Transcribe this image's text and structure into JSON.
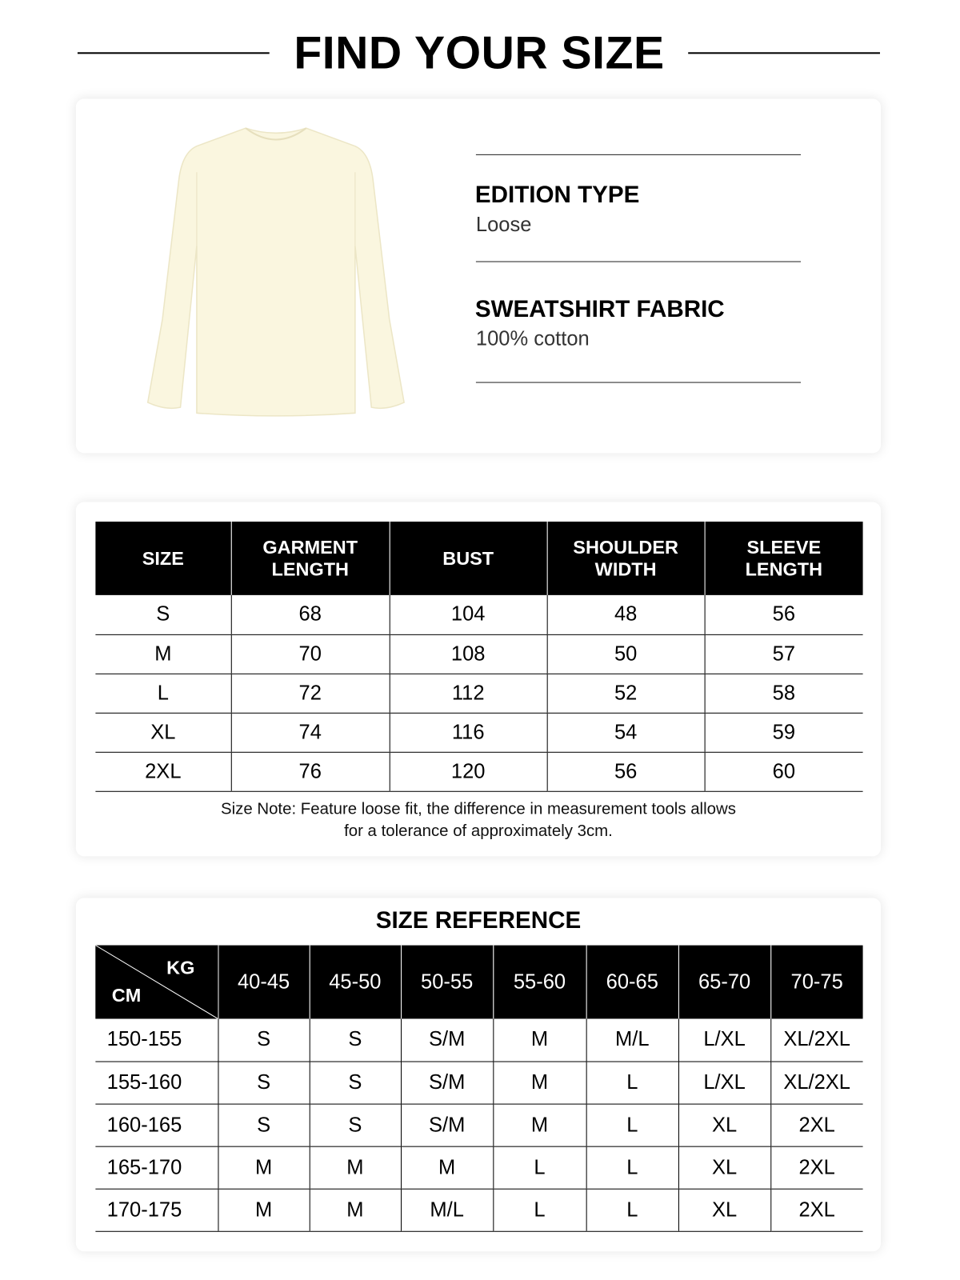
{
  "header": {
    "title": "FIND YOUR SIZE"
  },
  "product": {
    "image": "cream-long-sleeve-sweatshirt",
    "color": "#faf6df",
    "specs": [
      {
        "label": "EDITION TYPE",
        "value": "Loose"
      },
      {
        "label": "SWEATSHIRT FABRIC",
        "value": "100% cotton"
      }
    ]
  },
  "size_chart": {
    "headers": [
      [
        "SIZE"
      ],
      [
        "GARMENT",
        "LENGTH"
      ],
      [
        "BUST"
      ],
      [
        "SHOULDER",
        "WIDTH"
      ],
      [
        "SLEEVE",
        "LENGTH"
      ]
    ],
    "rows": [
      [
        "S",
        "68",
        "104",
        "48",
        "56"
      ],
      [
        "M",
        "70",
        "108",
        "50",
        "57"
      ],
      [
        "L",
        "72",
        "112",
        "52",
        "58"
      ],
      [
        "XL",
        "74",
        "116",
        "54",
        "59"
      ],
      [
        "2XL",
        "76",
        "120",
        "56",
        "60"
      ]
    ],
    "note_line1": "Size Note: Feature loose fit, the difference in measurement tools allows",
    "note_line2": "for a tolerance of approximately 3cm."
  },
  "size_reference": {
    "title": "SIZE REFERENCE",
    "corner_kg": "KG",
    "corner_cm": "CM",
    "weights": [
      "40-45",
      "45-50",
      "50-55",
      "55-60",
      "60-65",
      "65-70",
      "70-75"
    ],
    "rows": [
      {
        "height": "150-155",
        "sizes": [
          "S",
          "S",
          "S/M",
          "M",
          "M/L",
          "L/XL",
          "XL/2XL"
        ]
      },
      {
        "height": "155-160",
        "sizes": [
          "S",
          "S",
          "S/M",
          "M",
          "L",
          "L/XL",
          "XL/2XL"
        ]
      },
      {
        "height": "160-165",
        "sizes": [
          "S",
          "S",
          "S/M",
          "M",
          "L",
          "XL",
          "2XL"
        ]
      },
      {
        "height": "165-170",
        "sizes": [
          "M",
          "M",
          "M",
          "L",
          "L",
          "XL",
          "2XL"
        ]
      },
      {
        "height": "170-175",
        "sizes": [
          "M",
          "M",
          "M/L",
          "L",
          "L",
          "XL",
          "2XL"
        ]
      }
    ]
  }
}
